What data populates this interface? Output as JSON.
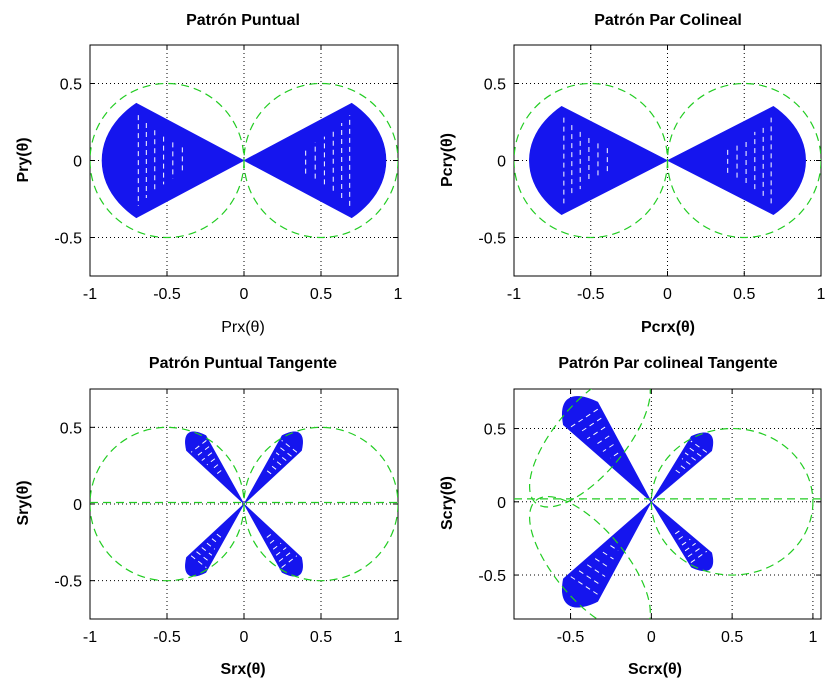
{
  "chart_data": [
    {
      "type": "scatter",
      "title": "Patrón Puntual",
      "xlabel": "Prx(θ)",
      "xlabel_bold": false,
      "ylabel": "Pry(θ)",
      "xlim": [
        -1,
        1
      ],
      "ylim": [
        -0.75,
        0.75
      ],
      "xticks": [
        -1,
        -0.5,
        0,
        0.5,
        1
      ],
      "yticks": [
        -0.5,
        0,
        0.5
      ],
      "xticklabels": [
        "-1",
        "-0.5",
        "0",
        "0.5",
        "1"
      ],
      "yticklabels": [
        "-0.5",
        "0",
        "0.5"
      ],
      "grid": true,
      "dashed_series": [
        {
          "kind": "circle",
          "cx": -0.5,
          "cy": 0,
          "r": 0.5
        },
        {
          "kind": "circle",
          "cx": 0.5,
          "cy": 0,
          "r": 0.5
        }
      ],
      "filled_series": [
        {
          "kind": "lobe",
          "angle_deg": 0,
          "length": 0.9,
          "half_width_deg": 28,
          "cap_width": 0.44
        },
        {
          "kind": "lobe",
          "angle_deg": 180,
          "length": 0.9,
          "half_width_deg": 28,
          "cap_width": 0.44
        }
      ],
      "colors": {
        "fill": "#1515ee",
        "dashed": "#22cc22"
      }
    },
    {
      "type": "scatter",
      "title": "Patrón Par Colineal",
      "xlabel": "Pcrx(θ)",
      "xlabel_bold": true,
      "ylabel": "Pcry(θ)",
      "xlim": [
        -1,
        1
      ],
      "ylim": [
        -0.75,
        0.75
      ],
      "xticks": [
        -1,
        -0.5,
        0,
        0.5,
        1
      ],
      "yticks": [
        -0.5,
        0,
        0.5
      ],
      "xticklabels": [
        "-1",
        "-0.5",
        "0",
        "0.5",
        "1"
      ],
      "yticklabels": [
        "-0.5",
        "0",
        "0.5"
      ],
      "grid": true,
      "dashed_series": [
        {
          "kind": "circle",
          "cx": -0.5,
          "cy": 0,
          "r": 0.5
        },
        {
          "kind": "circle",
          "cx": 0.5,
          "cy": 0,
          "r": 0.5
        }
      ],
      "filled_series": [
        {
          "kind": "lobe",
          "angle_deg": 0,
          "length": 0.88,
          "half_width_deg": 27,
          "cap_width": 0.4
        },
        {
          "kind": "lobe",
          "angle_deg": 180,
          "length": 0.88,
          "half_width_deg": 27,
          "cap_width": 0.4
        }
      ],
      "colors": {
        "fill": "#1515ee",
        "dashed": "#22cc22"
      }
    },
    {
      "type": "scatter",
      "title": "Patrón Puntual Tangente",
      "xlabel": "Srx(θ)",
      "xlabel_bold": true,
      "ylabel": "Sry(θ)",
      "xlim": [
        -1,
        1
      ],
      "ylim": [
        -0.75,
        0.75
      ],
      "xticks": [
        -1,
        -0.5,
        0,
        0.5,
        1
      ],
      "yticks": [
        -0.5,
        0,
        0.5
      ],
      "xticklabels": [
        "-1",
        "-0.5",
        "0",
        "0.5",
        "1"
      ],
      "yticklabels": [
        "-0.5",
        "0",
        "0.5"
      ],
      "grid": true,
      "dashed_series": [
        {
          "kind": "circle",
          "cx": -0.5,
          "cy": 0,
          "r": 0.5
        },
        {
          "kind": "circle",
          "cx": 0.5,
          "cy": 0,
          "r": 0.5
        },
        {
          "kind": "hline",
          "y": 0.01
        }
      ],
      "filled_series": [
        {
          "kind": "lobe",
          "angle_deg": 52,
          "length": 0.58,
          "half_width_deg": 9,
          "cap_width": 0.1
        },
        {
          "kind": "lobe",
          "angle_deg": 128,
          "length": 0.58,
          "half_width_deg": 9,
          "cap_width": 0.1
        },
        {
          "kind": "lobe",
          "angle_deg": -52,
          "length": 0.58,
          "half_width_deg": 9,
          "cap_width": 0.1
        },
        {
          "kind": "lobe",
          "angle_deg": -128,
          "length": 0.58,
          "half_width_deg": 9,
          "cap_width": 0.1
        }
      ],
      "colors": {
        "fill": "#1515ee",
        "dashed": "#22cc22"
      }
    },
    {
      "type": "scatter",
      "title": "Patrón Par colineal Tangente",
      "xlabel": "Scrx(θ)",
      "xlabel_bold": true,
      "ylabel": "Scry(θ)",
      "xlim": [
        -0.85,
        1.05
      ],
      "ylim": [
        -0.8,
        0.77
      ],
      "xticks": [
        -0.5,
        0,
        0.5,
        1
      ],
      "yticks": [
        -0.5,
        0,
        0.5
      ],
      "xticklabels": [
        "-0.5",
        "0",
        "0.5",
        "1"
      ],
      "yticklabels": [
        "-0.5",
        "0",
        "0.5"
      ],
      "grid": true,
      "dashed_series": [
        {
          "kind": "circle",
          "cx": 0.5,
          "cy": 0,
          "r": 0.5
        },
        {
          "kind": "ellipse",
          "cx": -0.38,
          "cy": 0.43,
          "rx": 0.52,
          "ry": 0.24,
          "rot_deg": -50
        },
        {
          "kind": "ellipse",
          "cx": -0.38,
          "cy": -0.43,
          "rx": 0.52,
          "ry": 0.24,
          "rot_deg": 50
        },
        {
          "kind": "hline",
          "y": 0.02
        }
      ],
      "filled_series": [
        {
          "kind": "lobe",
          "angle_deg": 126,
          "length": 0.86,
          "half_width_deg": 10,
          "cap_width": 0.2
        },
        {
          "kind": "lobe",
          "angle_deg": -126,
          "length": 0.86,
          "half_width_deg": 10,
          "cap_width": 0.2
        },
        {
          "kind": "lobe",
          "angle_deg": 52,
          "length": 0.58,
          "half_width_deg": 9,
          "cap_width": 0.1
        },
        {
          "kind": "lobe",
          "angle_deg": -52,
          "length": 0.58,
          "half_width_deg": 9,
          "cap_width": 0.1
        }
      ],
      "colors": {
        "fill": "#1515ee",
        "dashed": "#22cc22"
      }
    }
  ]
}
